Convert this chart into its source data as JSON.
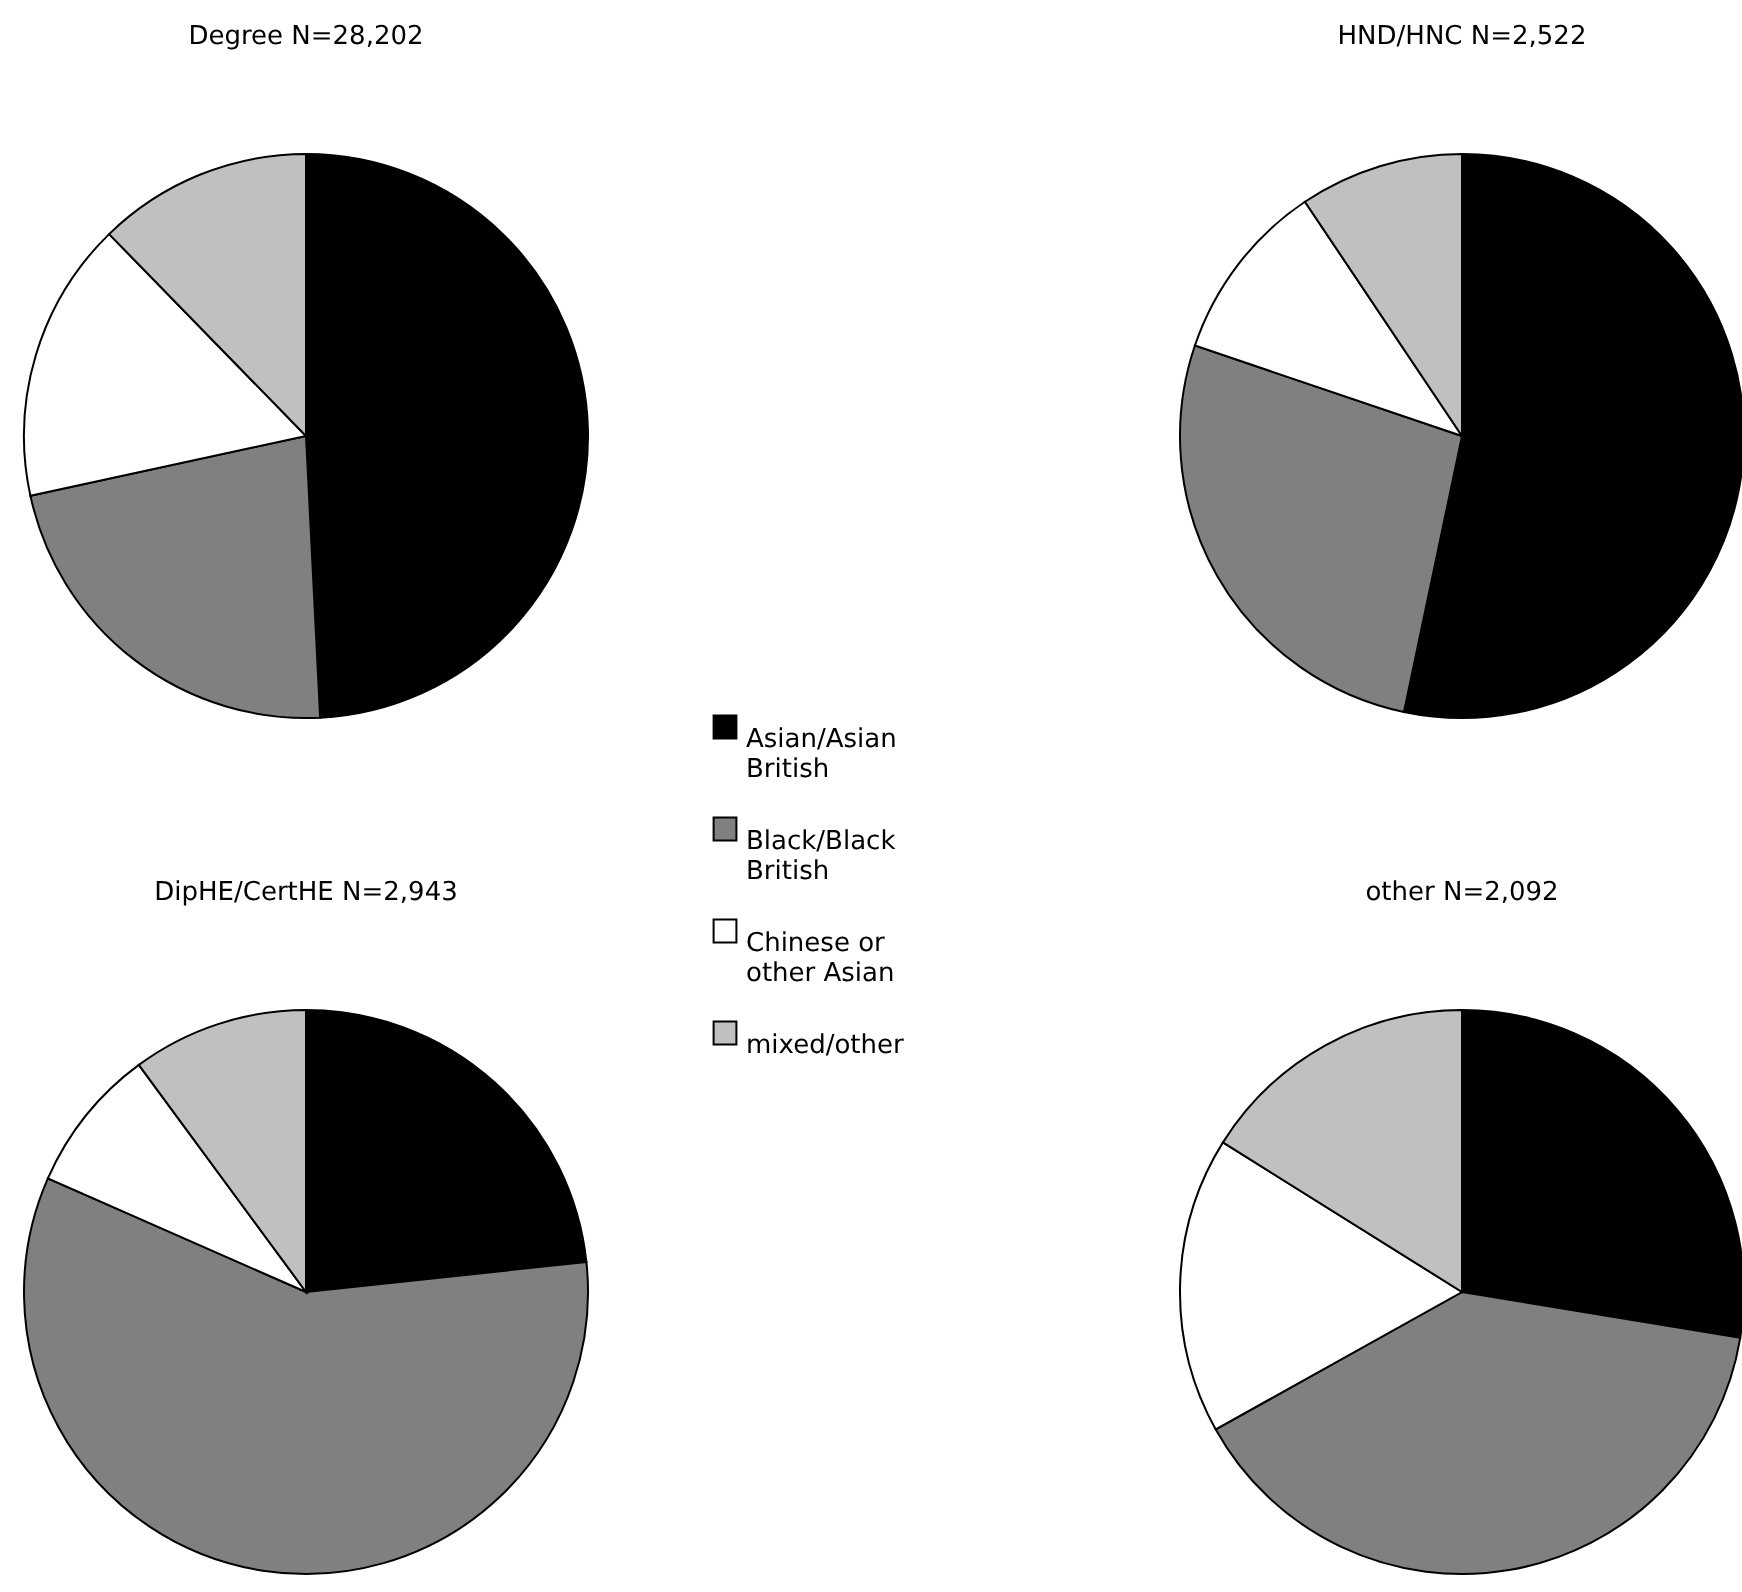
{
  "chart_data": [
    {
      "type": "pie",
      "title": "Degree N=28,202",
      "categories": [
        "Asian/Asian British",
        "Black/Black British",
        "Chinese or other Asian",
        "mixed/other"
      ],
      "values": [
        49.2,
        22.4,
        16.1,
        12.3
      ],
      "colors": [
        "#000000",
        "#808080",
        "#ffffff",
        "#c0c0c0"
      ],
      "legend": "right"
    },
    {
      "type": "pie",
      "title": "HND/HNC N=2,522",
      "values": [
        53.3,
        26.9,
        10.4,
        9.4
      ],
      "colors": [
        "#000000",
        "#808080",
        "#ffffff",
        "#c0c0c0"
      ]
    },
    {
      "type": "pie",
      "title": "DipHE/CertHE N=2,943",
      "values": [
        23.3,
        58.3,
        8.3,
        10.1
      ],
      "colors": [
        "#000000",
        "#808080",
        "#ffffff",
        "#c0c0c0"
      ]
    },
    {
      "type": "pie",
      "title": "other N=2,092",
      "values": [
        27.6,
        39.3,
        17.0,
        16.1
      ],
      "colors": [
        "#000000",
        "#808080",
        "#ffffff",
        "#c0c0c0"
      ]
    }
  ]
}
